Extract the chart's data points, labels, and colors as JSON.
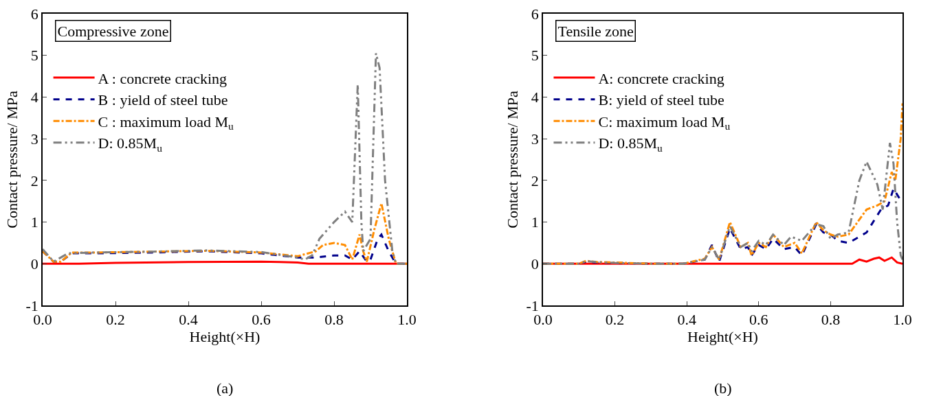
{
  "chart_data": [
    {
      "type": "line",
      "xlabel": "Height(×H)",
      "ylabel": "Contact pressure/ MPa",
      "annotations": [
        "Compressive zone",
        "(a)"
      ],
      "xlim": [
        0,
        1
      ],
      "xticks": [
        {
          "value": 0,
          "label": "0.0"
        },
        {
          "value": 0.2,
          "label": "0.2"
        },
        {
          "value": 0.4,
          "label": "0.4"
        },
        {
          "value": 0.6,
          "label": "0.6"
        },
        {
          "value": 0.8,
          "label": "0.8"
        },
        {
          "value": 1,
          "label": "1.0"
        }
      ],
      "ylim": [
        -1,
        6
      ],
      "yticks": [
        -1,
        0,
        1,
        2,
        3,
        4,
        5,
        6
      ],
      "grid": false,
      "legend": "top left",
      "marker": "none",
      "series": [
        {
          "name": "A : concrete cracking",
          "color": "#ff0000",
          "line_style": "solid",
          "x": [
            0,
            0.1,
            0.2,
            0.4,
            0.6,
            0.65,
            0.7,
            0.73,
            1
          ],
          "values": [
            0,
            0,
            0.02,
            0.04,
            0.05,
            0.04,
            0.03,
            0,
            0
          ]
        },
        {
          "name": "B : yield of steel tube",
          "color": "#00008b",
          "line_style": "dashed",
          "x": [
            0,
            0.03,
            0.05,
            0.08,
            0.15,
            0.3,
            0.45,
            0.6,
            0.7,
            0.75,
            0.8,
            0.83,
            0.85,
            0.87,
            0.89,
            0.9,
            0.92,
            0.93,
            0.95,
            0.97,
            1
          ],
          "values": [
            0.3,
            0.05,
            0.05,
            0.25,
            0.25,
            0.27,
            0.3,
            0.25,
            0.15,
            0.15,
            0.2,
            0.2,
            0.1,
            0.3,
            0.05,
            0.1,
            0.6,
            0.7,
            0.3,
            0,
            0
          ]
        },
        {
          "name": "C : maximum load M$_{u}$",
          "color": "#ff8c00",
          "line_style": "dashdot",
          "x": [
            0,
            0.03,
            0.05,
            0.08,
            0.15,
            0.3,
            0.45,
            0.6,
            0.7,
            0.75,
            0.77,
            0.8,
            0.83,
            0.85,
            0.87,
            0.88,
            0.89,
            0.91,
            0.93,
            0.95,
            0.97,
            1
          ],
          "values": [
            0.3,
            0.05,
            0.05,
            0.27,
            0.27,
            0.29,
            0.31,
            0.27,
            0.18,
            0.3,
            0.45,
            0.5,
            0.45,
            0.1,
            0.7,
            0.3,
            0.05,
            0.8,
            1.45,
            0.6,
            0,
            0
          ]
        },
        {
          "name": "D: 0.85M$_{u}$",
          "color": "#7f7f7f",
          "line_style": "longdashdot",
          "x": [
            0,
            0.03,
            0.07,
            0.15,
            0.3,
            0.45,
            0.6,
            0.7,
            0.72,
            0.74,
            0.76,
            0.8,
            0.83,
            0.85,
            0.865,
            0.875,
            0.88,
            0.9,
            0.915,
            0.925,
            0.94,
            0.96,
            0.97,
            1
          ],
          "values": [
            0.35,
            0.05,
            0.25,
            0.27,
            0.29,
            0.32,
            0.28,
            0.15,
            0.1,
            0.2,
            0.6,
            1,
            1.25,
            1,
            4.3,
            1,
            0.3,
            0.6,
            5.05,
            4.7,
            2,
            0.3,
            0,
            0
          ]
        }
      ]
    },
    {
      "type": "line",
      "xlabel": "Height(×H)",
      "ylabel": "Contact pressure/ MPa",
      "annotations": [
        "Tensile zone",
        "(b)"
      ],
      "xlim": [
        0,
        1
      ],
      "xticks": [
        {
          "value": 0,
          "label": "0.0"
        },
        {
          "value": 0.2,
          "label": "0.2"
        },
        {
          "value": 0.4,
          "label": "0.4"
        },
        {
          "value": 0.6,
          "label": "0.6"
        },
        {
          "value": 0.8,
          "label": "0.8"
        },
        {
          "value": 1,
          "label": "1.0"
        }
      ],
      "ylim": [
        -1,
        6
      ],
      "yticks": [
        -1,
        0,
        1,
        2,
        3,
        4,
        5,
        6
      ],
      "grid": false,
      "legend": "top left",
      "marker": "none",
      "series": [
        {
          "name": "A: concrete cracking",
          "color": "#ff0000",
          "line_style": "solid",
          "x": [
            0,
            0.86,
            0.88,
            0.9,
            0.92,
            0.935,
            0.95,
            0.97,
            0.985,
            1
          ],
          "values": [
            0,
            0,
            0.1,
            0.05,
            0.12,
            0.15,
            0.07,
            0.15,
            0.03,
            0
          ]
        },
        {
          "name": "B: yield of steel tube",
          "color": "#00008b",
          "line_style": "dashed",
          "x": [
            0,
            0.1,
            0.12,
            0.15,
            0.2,
            0.3,
            0.39,
            0.45,
            0.47,
            0.49,
            0.52,
            0.55,
            0.57,
            0.58,
            0.6,
            0.62,
            0.64,
            0.67,
            0.7,
            0.72,
            0.76,
            0.78,
            0.8,
            0.82,
            0.85,
            0.9,
            0.94,
            0.96,
            0.975,
            1
          ],
          "values": [
            0,
            0,
            0.05,
            0.03,
            0.02,
            0,
            0,
            0.1,
            0.45,
            0.05,
            0.85,
            0.35,
            0.4,
            0.2,
            0.45,
            0.35,
            0.6,
            0.35,
            0.4,
            0.2,
            0.95,
            0.75,
            0.7,
            0.55,
            0.5,
            0.75,
            1.3,
            1.4,
            1.8,
            1.45
          ]
        },
        {
          "name": "C: maximum load M$_{u}$",
          "color": "#ff8c00",
          "line_style": "dashdot",
          "x": [
            0,
            0.1,
            0.12,
            0.15,
            0.2,
            0.3,
            0.39,
            0.45,
            0.47,
            0.49,
            0.52,
            0.55,
            0.57,
            0.58,
            0.6,
            0.62,
            0.64,
            0.67,
            0.7,
            0.72,
            0.76,
            0.78,
            0.8,
            0.82,
            0.85,
            0.9,
            0.93,
            0.95,
            0.97,
            0.98,
            0.995,
            1
          ],
          "values": [
            0,
            0,
            0.07,
            0.04,
            0.03,
            0,
            0,
            0.12,
            0.4,
            0.1,
            1,
            0.4,
            0.5,
            0.2,
            0.5,
            0.4,
            0.7,
            0.4,
            0.5,
            0.25,
            1,
            0.8,
            0.7,
            0.65,
            0.7,
            1.3,
            1.4,
            1.5,
            2.2,
            2,
            3,
            3.85
          ]
        },
        {
          "name": "D: 0.85M$_{u}$",
          "color": "#7f7f7f",
          "line_style": "longdashdot",
          "x": [
            0,
            0.1,
            0.12,
            0.15,
            0.2,
            0.3,
            0.39,
            0.45,
            0.47,
            0.49,
            0.52,
            0.55,
            0.57,
            0.58,
            0.6,
            0.62,
            0.64,
            0.67,
            0.69,
            0.72,
            0.76,
            0.78,
            0.8,
            0.82,
            0.85,
            0.88,
            0.9,
            0.93,
            0.945,
            0.965,
            0.975,
            0.985,
            0.995,
            1
          ],
          "values": [
            0,
            0,
            0.06,
            0.04,
            0.02,
            0,
            0,
            0.1,
            0.4,
            0.1,
            0.9,
            0.4,
            0.5,
            0.3,
            0.55,
            0.45,
            0.7,
            0.45,
            0.65,
            0.55,
            0.95,
            0.9,
            0.6,
            0.7,
            0.75,
            2,
            2.45,
            1.9,
            1.3,
            2.9,
            2.4,
            1,
            0.2,
            0.1
          ]
        }
      ]
    }
  ]
}
